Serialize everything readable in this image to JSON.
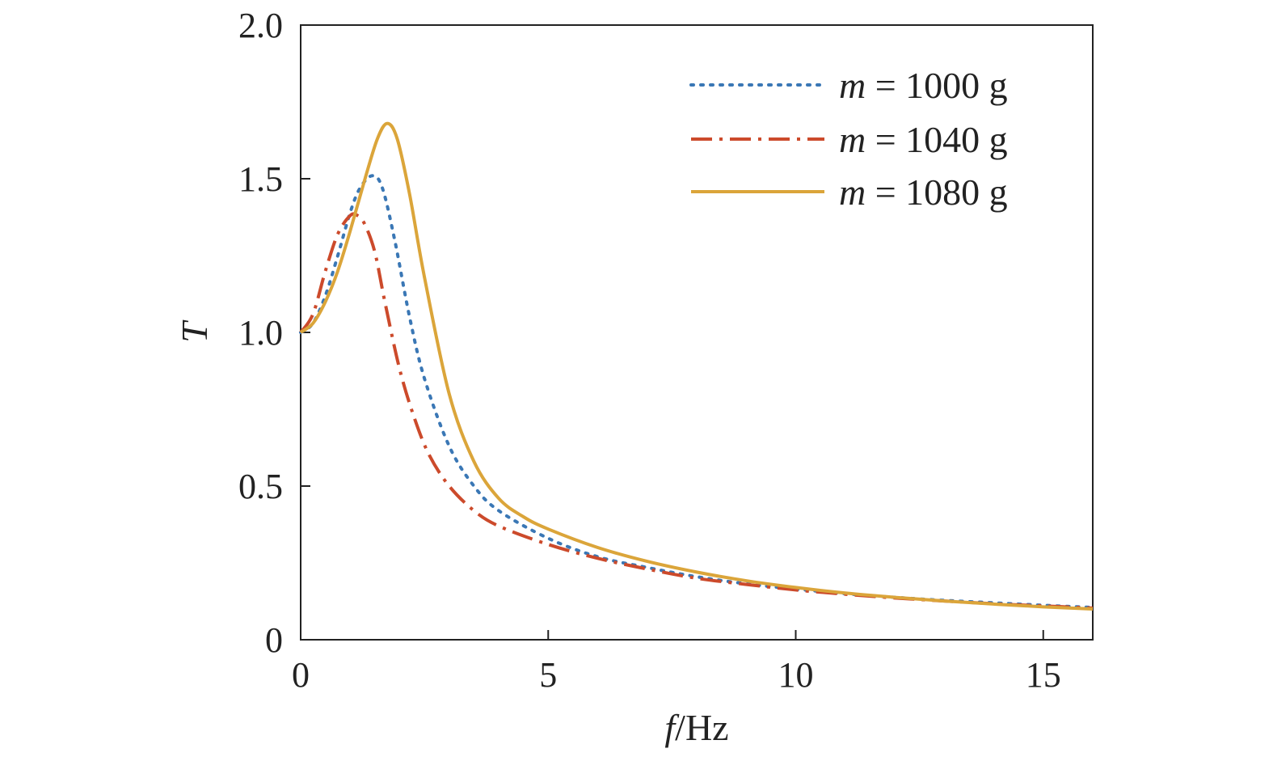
{
  "chart_data": {
    "type": "line",
    "title": "",
    "xlabel_var": "f",
    "xlabel_unit": "/Hz",
    "ylabel": "T",
    "xlim": [
      0,
      16
    ],
    "ylim": [
      0,
      2.0
    ],
    "xticks": [
      0,
      5,
      10,
      15
    ],
    "xtick_labels": [
      "0",
      "5",
      "10",
      "15"
    ],
    "yticks": [
      0,
      0.5,
      1.0,
      1.5,
      2.0
    ],
    "ytick_labels": [
      "0",
      "0.5",
      "1.0",
      "1.5",
      "2.0"
    ],
    "grid": false,
    "legend_position": "top-right",
    "series": [
      {
        "name_var": "m",
        "name_rest": " = 1000 g",
        "color": "#3a77b5",
        "dash": "dotted",
        "x": [
          0,
          0.25,
          0.5,
          0.75,
          1.0,
          1.2,
          1.45,
          1.65,
          1.9,
          2.2,
          2.5,
          3.0,
          3.5,
          4.0,
          5.0,
          6.0,
          7.0,
          8.0,
          9.0,
          10.0,
          11.0,
          12.0,
          13.0,
          14.0,
          15.0,
          16.0
        ],
        "y": [
          1.0,
          1.03,
          1.12,
          1.25,
          1.39,
          1.47,
          1.51,
          1.47,
          1.3,
          1.05,
          0.85,
          0.63,
          0.5,
          0.42,
          0.33,
          0.27,
          0.235,
          0.205,
          0.182,
          0.165,
          0.15,
          0.138,
          0.128,
          0.12,
          0.112,
          0.105
        ]
      },
      {
        "name_var": "m",
        "name_rest": " = 1040 g",
        "color": "#cc4a2b",
        "dash": "dashdot",
        "x": [
          0,
          0.25,
          0.5,
          0.75,
          1.0,
          1.15,
          1.3,
          1.5,
          1.7,
          2.0,
          2.3,
          2.6,
          3.0,
          3.5,
          4.0,
          5.0,
          6.0,
          7.0,
          8.0,
          9.0,
          10.0,
          11.0,
          12.0,
          13.0,
          14.0,
          15.0,
          16.0
        ],
        "y": [
          1.0,
          1.06,
          1.2,
          1.32,
          1.38,
          1.38,
          1.35,
          1.26,
          1.1,
          0.88,
          0.72,
          0.6,
          0.5,
          0.42,
          0.37,
          0.31,
          0.265,
          0.23,
          0.2,
          0.18,
          0.162,
          0.148,
          0.136,
          0.126,
          0.117,
          0.11,
          0.103
        ]
      },
      {
        "name_var": "m",
        "name_rest": " = 1080 g",
        "color": "#dba53a",
        "dash": "solid",
        "x": [
          0,
          0.25,
          0.5,
          0.75,
          1.0,
          1.3,
          1.55,
          1.75,
          1.95,
          2.2,
          2.5,
          3.0,
          3.5,
          4.0,
          4.5,
          5.0,
          6.0,
          7.0,
          8.0,
          9.0,
          10.0,
          11.0,
          12.0,
          13.0,
          14.0,
          15.0,
          16.0
        ],
        "y": [
          1.0,
          1.03,
          1.1,
          1.2,
          1.33,
          1.5,
          1.63,
          1.68,
          1.63,
          1.45,
          1.18,
          0.8,
          0.58,
          0.46,
          0.4,
          0.36,
          0.3,
          0.255,
          0.22,
          0.192,
          0.17,
          0.152,
          0.138,
          0.126,
          0.116,
          0.107,
          0.1
        ]
      }
    ]
  }
}
